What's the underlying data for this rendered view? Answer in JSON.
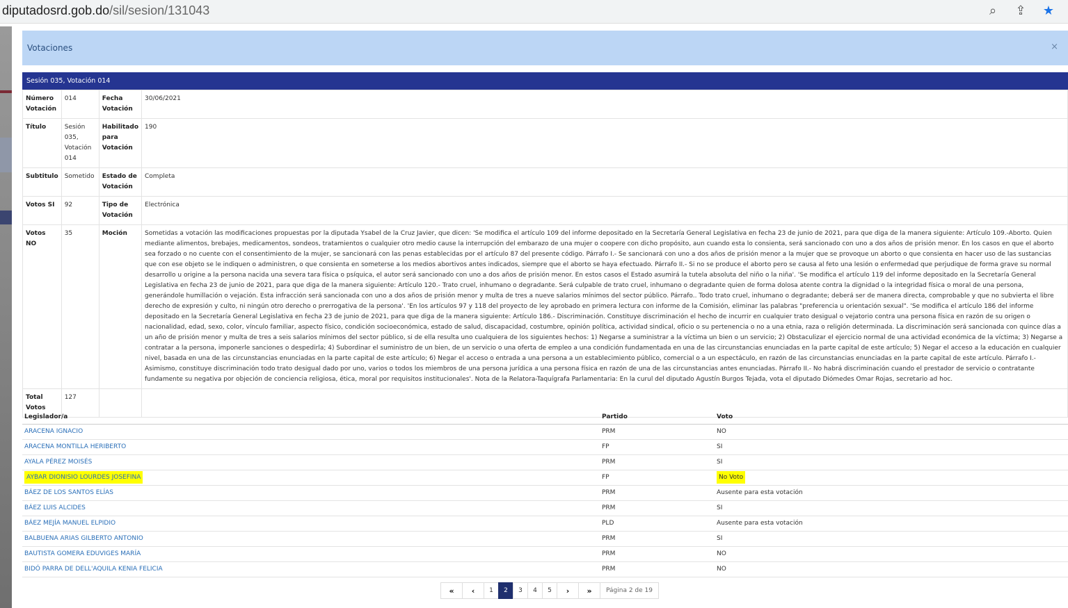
{
  "browser": {
    "url_host": "diputadosrd.gob.do",
    "url_path": "/sil/sesion/131043",
    "icons": [
      "zoom-icon",
      "share-icon",
      "bookmark-star-icon"
    ]
  },
  "modal": {
    "title": "Votaciones",
    "close": "×",
    "session_bar": "Sesión 035, Votación 014"
  },
  "info": {
    "numero_label": "Número Votación",
    "numero": "014",
    "fecha_label": "Fecha Votación",
    "fecha": "30/06/2021",
    "titulo_label": "Título",
    "titulo": "Sesión 035, Votación 014",
    "habilitado_label": "Habilitado para Votación",
    "habilitado": "190",
    "subtitulo_label": "Subtitulo",
    "subtitulo": "Sometido",
    "estado_label": "Estado de Votación",
    "estado": "Completa",
    "si_label": "Votos SI",
    "si": "92",
    "tipo_label": "Tipo de Votación",
    "tipo": "Electrónica",
    "no_label": "Votos NO",
    "no": "35",
    "mocion_label": "Moción",
    "mocion": "Sometidas a votación las modificaciones propuestas por la diputada Ysabel de la Cruz Javier, que dicen: 'Se modifica el artículo 109 del informe depositado en la Secretaría General Legislativa en fecha 23 de junio de 2021, para que diga de la manera siguiente: Artículo 109.-Aborto. Quien mediante alimentos, brebajes, medicamentos, sondeos, tratamientos o cualquier otro medio cause la interrupción del embarazo de una mujer o coopere con dicho propósito, aun cuando esta lo consienta, será sancionado con uno a dos años de prisión menor. En los casos en que el aborto sea forzado o no cuente con el consentimiento de la mujer, se sancionará con las penas establecidas por el artículo 87 del presente código. Párrafo I.- Se sancionará con uno a dos años de prisión menor a la mujer que se provoque un aborto o que consienta en hacer uso de las sustancias que con ese objeto se le indiquen o administren, o que consienta en someterse a los medios abortivos antes indicados, siempre que el aborto se haya efectuado. Párrafo II.- Si no se produce el aborto pero se causa al feto una lesión o enfermedad que perjudique de forma grave su normal desarrollo u origine a la persona nacida una severa tara física o psíquica, el autor será sancionado con uno a dos años de prisión menor. En estos casos el Estado asumirá la tutela absoluta del niño o la niña'. 'Se modifica el artículo 119 del informe depositado en la Secretaría General Legislativa en fecha 23 de junio de 2021, para que diga de la manera siguiente: Artículo 120.- Trato cruel, inhumano o degradante. Será culpable de trato cruel, inhumano o degradante quien de forma dolosa atente contra la dignidad o la integridad física o moral de una persona, generándole humillación o vejación. Esta infracción será sancionada con uno a dos años de prisión menor y multa de tres a nueve salarios mínimos del sector público. Párrafo.. Todo trato cruel, inhumano o degradante; deberá ser de manera directa, comprobable y que no subvierta el libre derecho de expresión y culto, ni ningún otro derecho o prerrogativa de la persona'. 'En los artículos 97 y 118 del proyecto de ley aprobado en primera lectura con informe de la Comisión, eliminar las palabras \"preferencia u orientación sexual\". 'Se modifica el artículo 186 del informe depositado en la Secretaría General Legislativa en fecha 23 de junio de 2021, para que diga de la manera siguiente: Artículo 186.- Discriminación. Constituye discriminación el hecho de incurrir en cualquier trato desigual o vejatorio contra una persona física en razón de su origen o nacionalidad, edad, sexo, color, vínculo familiar, aspecto físico, condición socioeconómica, estado de salud, discapacidad, costumbre, opinión política, actividad sindical, oficio o su pertenencia o no a una etnia, raza o religión determinada. La discriminación será sancionada con quince días a un año de prisión menor y multa de tres a seis salarios mínimos del sector público, si de ella resulta uno cualquiera de los siguientes hechos: 1) Negarse a suministrar a la víctima un bien o un servicio; 2) Obstaculizar el ejercicio normal de una actividad económica de la víctima; 3) Negarse a contratar a la persona, imponerle sanciones o despedirla; 4) Subordinar el suministro de un bien, de un servicio o una oferta de empleo a una condición fundamentada en una de las circunstancias enunciadas en la parte capital de este artículo; 5) Negar el acceso a la educación en cualquier nivel, basada en una de las circunstancias enunciadas en la parte capital de este artículo; 6) Negar el acceso o entrada a una persona a un establecimiento público, comercial o a un espectáculo, en razón de las circunstancias enunciadas en la parte capital de este artículo. Párrafo I.- Asimismo, constituye discriminación todo trato desigual dado por uno, varios o todos los miembros de una persona jurídica a una persona física en razón de una de las circunstancias antes enunciadas. Párrafo II.- No habrá discriminación cuando el prestador de servicio o contratante fundamente su negativa por objeción de conciencia religiosa, ética, moral por requisitos institucionales'. Nota de la Relatora-Taquígrafa Parlamentaria: En la curul del diputado Agustín Burgos Tejada, vota el diputado Diómedes Omar Rojas, secretario ad hoc.",
    "total_label": "Total Votos",
    "total": "127"
  },
  "legislators": {
    "headers": [
      "Legislador/a",
      "Partido",
      "Voto"
    ],
    "highlight_color": "#ffff00",
    "rows": [
      {
        "name": "ARACENA IGNACIO",
        "party": "PRM",
        "vote": "NO"
      },
      {
        "name": "ARACENA MONTILLA HERIBERTO",
        "party": "FP",
        "vote": "SI"
      },
      {
        "name": "AYALA PÉREZ MOISÉS",
        "party": "PRM",
        "vote": "SI"
      },
      {
        "name": "AYBAR DIONISIO LOURDES JOSEFINA",
        "party": "FP",
        "vote": "No Voto",
        "highlighted": true
      },
      {
        "name": "BÁEZ DE LOS SANTOS ELÍAS",
        "party": "PRM",
        "vote": "Ausente para esta votación"
      },
      {
        "name": "BÁEZ LUIS ALCIDES",
        "party": "PRM",
        "vote": "SI"
      },
      {
        "name": "BÁEZ MEJÍA MANUEL ELPIDIO",
        "party": "PLD",
        "vote": "Ausente para esta votación"
      },
      {
        "name": "BALBUENA ARIAS GILBERTO ANTONIO",
        "party": "PRM",
        "vote": "SI"
      },
      {
        "name": "BAUTISTA GOMERA EDUVIGES MARÍA",
        "party": "PRM",
        "vote": "NO"
      },
      {
        "name": "BIDÓ PARRA DE DELL'AQUILA KENIA FELICIA",
        "party": "PRM",
        "vote": "NO"
      }
    ]
  },
  "pagination": {
    "first": "«",
    "prev": "‹",
    "pages": [
      "1",
      "2",
      "3",
      "4",
      "5"
    ],
    "current": "2",
    "next": "›",
    "last": "»",
    "info": "Página 2 de 19"
  }
}
